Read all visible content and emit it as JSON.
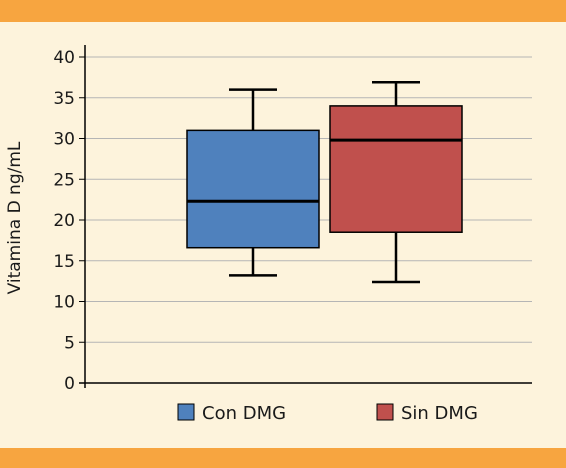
{
  "colors": {
    "background": "#fdf3dc",
    "band": "#f7a540",
    "grid": "#b5b5b5",
    "axis": "#000000"
  },
  "chart_data": {
    "type": "boxplot",
    "title": "",
    "xlabel": "",
    "ylabel": "Vitamina D ng/mL",
    "ylim": [
      0,
      40
    ],
    "yticks": [
      0,
      5,
      10,
      15,
      20,
      25,
      30,
      35,
      40
    ],
    "grid": true,
    "legend_position": "bottom",
    "series": [
      {
        "name": "Con DMG",
        "color": "#4f81bd",
        "min": 13.2,
        "q1": 16.6,
        "median": 22.3,
        "q3": 31.0,
        "max": 36.0
      },
      {
        "name": "Sin DMG",
        "color": "#c0504d",
        "min": 12.4,
        "q1": 18.5,
        "median": 29.8,
        "q3": 34.0,
        "max": 36.9
      }
    ]
  }
}
